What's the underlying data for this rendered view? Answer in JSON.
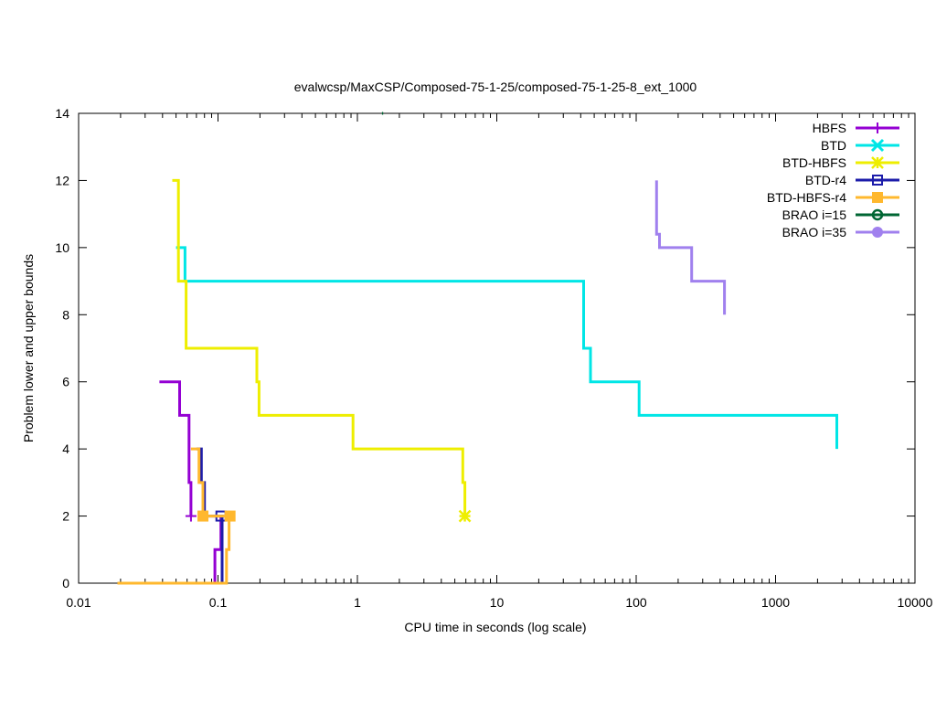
{
  "chart_data": {
    "type": "line",
    "title": "evalwcsp/MaxCSP/Composed-75-1-25/composed-75-1-25-8_ext_1000",
    "xlabel": "CPU time in seconds (log scale)",
    "ylabel": "Problem lower and upper bounds",
    "xscale": "log",
    "xlim": [
      0.01,
      10000
    ],
    "ylim": [
      0,
      14
    ],
    "xticks": [
      0.01,
      0.1,
      1,
      10,
      100,
      1000,
      10000
    ],
    "xtick_labels": [
      "0.01",
      "0.1",
      "1",
      "10",
      "100",
      "1000",
      "10000"
    ],
    "yticks": [
      0,
      2,
      4,
      6,
      8,
      10,
      12,
      14
    ],
    "ytick_labels": [
      "0",
      "2",
      "4",
      "6",
      "8",
      "10",
      "12",
      "14"
    ],
    "grid": false,
    "legend_position": "top-right",
    "series": [
      {
        "name": "HBFS",
        "color": "#9400d3",
        "marker": "plus",
        "step_lines": [
          [
            [
              0.038,
              6
            ],
            [
              0.053,
              6
            ],
            [
              0.053,
              5
            ],
            [
              0.062,
              5
            ],
            [
              0.062,
              3
            ],
            [
              0.064,
              3
            ],
            [
              0.064,
              2
            ]
          ],
          [
            [
              0.032,
              0
            ],
            [
              0.095,
              0
            ],
            [
              0.095,
              1
            ],
            [
              0.105,
              1
            ],
            [
              0.105,
              2
            ]
          ]
        ],
        "markers": [
          [
            0.064,
            2
          ]
        ]
      },
      {
        "name": "BTD",
        "color": "#00e6e6",
        "marker": "x",
        "step_lines": [
          [
            [
              0.05,
              10
            ],
            [
              0.058,
              10
            ],
            [
              0.058,
              9
            ],
            [
              42,
              9
            ],
            [
              42,
              7
            ],
            [
              47,
              7
            ],
            [
              47,
              6
            ],
            [
              105,
              6
            ],
            [
              105,
              5
            ],
            [
              2750,
              5
            ],
            [
              2750,
              4
            ]
          ],
          [
            [
              0.022,
              0
            ],
            [
              0.024,
              0
            ]
          ]
        ],
        "markers": []
      },
      {
        "name": "BTD-HBFS",
        "color": "#eeee00",
        "marker": "asterisk",
        "step_lines": [
          [
            [
              0.047,
              12
            ],
            [
              0.052,
              12
            ],
            [
              0.052,
              9
            ],
            [
              0.059,
              9
            ],
            [
              0.059,
              7
            ],
            [
              0.19,
              7
            ],
            [
              0.19,
              6
            ],
            [
              0.197,
              6
            ],
            [
              0.197,
              5
            ],
            [
              0.93,
              5
            ],
            [
              0.93,
              4
            ],
            [
              5.7,
              4
            ],
            [
              5.7,
              3
            ],
            [
              5.9,
              3
            ],
            [
              5.9,
              2
            ]
          ]
        ],
        "markers": [
          [
            5.9,
            2
          ]
        ]
      },
      {
        "name": "BTD-r4",
        "color": "#1c1caa",
        "marker": "open-square",
        "step_lines": [
          [
            [
              0.07,
              4
            ],
            [
              0.076,
              4
            ],
            [
              0.076,
              3
            ],
            [
              0.08,
              3
            ],
            [
              0.08,
              2
            ],
            [
              0.11,
              2
            ]
          ],
          [
            [
              0.04,
              0
            ],
            [
              0.107,
              0
            ],
            [
              0.107,
              2
            ]
          ]
        ],
        "markers": [
          [
            0.105,
            2
          ]
        ]
      },
      {
        "name": "BTD-HBFS-r4",
        "color": "#ffb82e",
        "marker": "filled-square",
        "step_lines": [
          [
            [
              0.064,
              4
            ],
            [
              0.073,
              4
            ],
            [
              0.073,
              3
            ],
            [
              0.078,
              3
            ],
            [
              0.078,
              2
            ],
            [
              0.122,
              2
            ]
          ],
          [
            [
              0.019,
              0
            ],
            [
              0.115,
              0
            ],
            [
              0.115,
              1
            ],
            [
              0.12,
              1
            ],
            [
              0.12,
              2
            ]
          ]
        ],
        "markers": [
          [
            0.078,
            2
          ],
          [
            0.122,
            2
          ]
        ]
      },
      {
        "name": "BRAO i=15",
        "color": "#006633",
        "marker": "open-circle",
        "step_lines": [
          [
            [
              1.5,
              14
            ],
            [
              1.53,
              14
            ]
          ]
        ],
        "markers": []
      },
      {
        "name": "BRAO i=35",
        "color": "#a080ee",
        "marker": "filled-circle",
        "step_lines": [
          [
            [
              140,
              12
            ],
            [
              140,
              10.4
            ],
            [
              147,
              10.4
            ],
            [
              147,
              10
            ],
            [
              250,
              10
            ],
            [
              250,
              9
            ],
            [
              430,
              9
            ],
            [
              430,
              8
            ]
          ]
        ],
        "markers": []
      }
    ]
  }
}
